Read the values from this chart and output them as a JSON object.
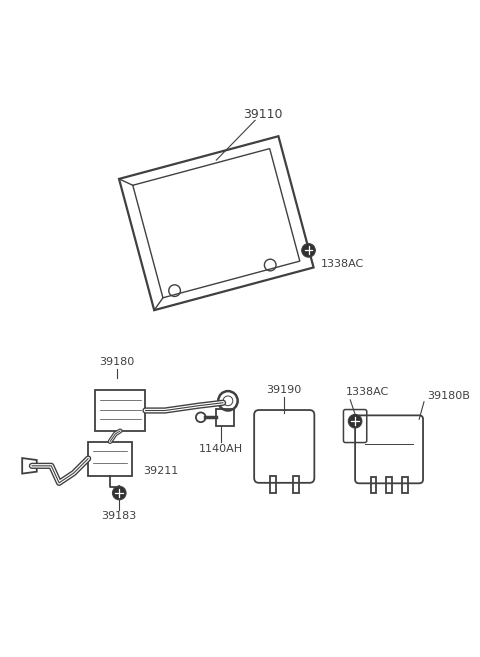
{
  "background_color": "#ffffff",
  "line_color": "#404040",
  "text_color": "#404040",
  "ecm": {
    "label": "39110",
    "bolt_label": "1338AC"
  },
  "parts": [
    "39180",
    "39183",
    "39211",
    "1140AH",
    "39190",
    "1338AC",
    "39180B"
  ]
}
